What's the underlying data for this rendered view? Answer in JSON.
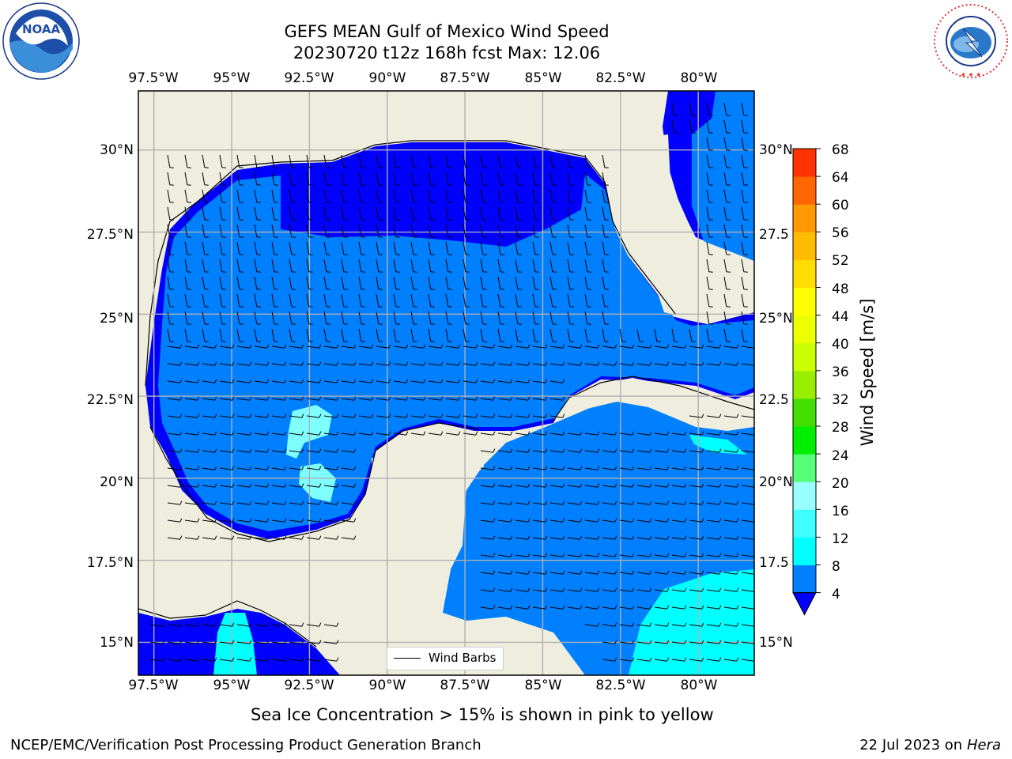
{
  "title": {
    "line1": "GEFS MEAN Gulf of Mexico Wind Speed",
    "line2": "20230720 t12z 168h fcst   Max: 12.06"
  },
  "logos": {
    "left": {
      "text": "NOAA",
      "ring_text": "NATIONAL OCEANIC AND ATMOSPHERIC ADMINISTRATION · U.S. DEPARTMENT OF COMMERCE"
    },
    "right": {
      "ring_text": "NATIONAL WEATHER SERVICE"
    }
  },
  "map": {
    "lon_ticks": [
      "97.5°W",
      "95°W",
      "92.5°W",
      "90°W",
      "87.5°W",
      "85°W",
      "82.5°W",
      "80°W"
    ],
    "lat_ticks": [
      "30°N",
      "27.5°N",
      "25°N",
      "22.5°N",
      "20°N",
      "17.5°N",
      "15°N"
    ],
    "right_lat_ticks": [
      "30°N",
      "27.5",
      "25°N",
      "22.5",
      "20°N",
      "17.5",
      "15°N"
    ],
    "extent": {
      "lon": [
        -98,
        -78.2
      ],
      "lat": [
        14,
        31.8
      ]
    },
    "grid": true,
    "legend_label": "Wind Barbs",
    "colors": {
      "land": "#efedde",
      "ocean_4": "#0080ff",
      "ocean_below_4": "#0000ff",
      "ocean_8": "#00ffff",
      "ocean_12": "#7fffff",
      "grid": "#b0b0b0"
    }
  },
  "colorbar": {
    "label": "Wind Speed [m/s]",
    "ticks": [
      "4",
      "8",
      "12",
      "16",
      "20",
      "24",
      "28",
      "32",
      "36",
      "40",
      "44",
      "48",
      "52",
      "56",
      "60",
      "64",
      "68"
    ],
    "colors": [
      "#0080ff",
      "#00ffff",
      "#40ffff",
      "#99ffff",
      "#55ff77",
      "#00ee00",
      "#44dd00",
      "#99ee00",
      "#ccff00",
      "#eeff00",
      "#ffff00",
      "#ffdd00",
      "#ffbb00",
      "#ff9900",
      "#ff6600",
      "#ff3300"
    ],
    "under_color": "#0000ff"
  },
  "caption": "Sea Ice Concentration > 15% is shown in pink to yellow",
  "footer": {
    "left": "NCEP/EMC/Verification Post Processing Product Generation Branch",
    "right_date": "22 Jul 2023 on ",
    "right_machine": "Hera"
  }
}
